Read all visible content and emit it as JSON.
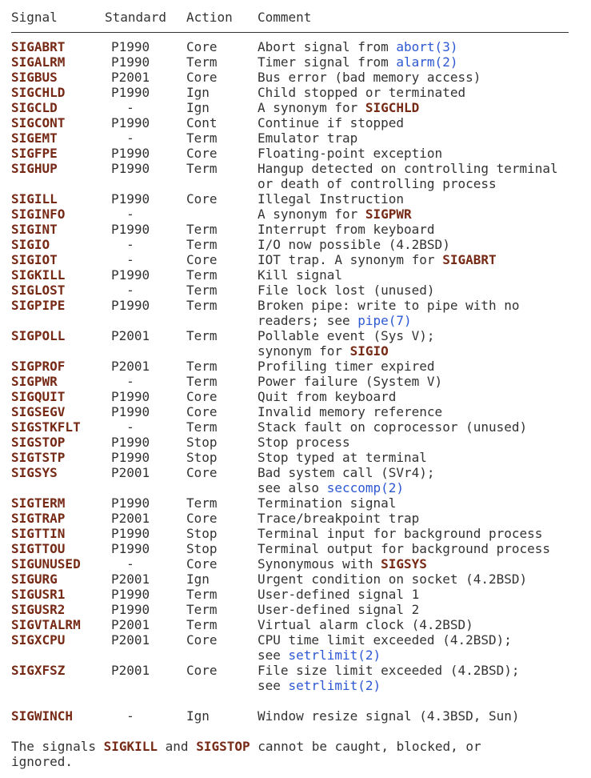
{
  "colors": {
    "text": "#333333",
    "signal_name": "#762a16",
    "link": "#2d58d3",
    "rule": "#333333",
    "background": "#ffffff"
  },
  "table": {
    "headers": {
      "signal": "Signal",
      "standard": "Standard",
      "action": "Action",
      "comment": "Comment"
    },
    "rows": [
      {
        "signal": "SIGABRT",
        "standard": "P1990",
        "action": "Core",
        "comment": [
          [
            "Abort signal from ",
            {
              "t": "abort(3)",
              "k": "link"
            }
          ]
        ]
      },
      {
        "signal": "SIGALRM",
        "standard": "P1990",
        "action": "Term",
        "comment": [
          [
            "Timer signal from ",
            {
              "t": "alarm(2)",
              "k": "link"
            }
          ]
        ]
      },
      {
        "signal": "SIGBUS",
        "standard": "P2001",
        "action": "Core",
        "comment": [
          [
            "Bus error (bad memory access)"
          ]
        ]
      },
      {
        "signal": "SIGCHLD",
        "standard": "P1990",
        "action": "Ign",
        "comment": [
          [
            "Child stopped or terminated"
          ]
        ]
      },
      {
        "signal": "SIGCLD",
        "standard": "-",
        "action": "Ign",
        "comment": [
          [
            "A synonym for ",
            {
              "t": "SIGCHLD",
              "k": "sig"
            }
          ]
        ]
      },
      {
        "signal": "SIGCONT",
        "standard": "P1990",
        "action": "Cont",
        "comment": [
          [
            "Continue if stopped"
          ]
        ]
      },
      {
        "signal": "SIGEMT",
        "standard": "-",
        "action": "Term",
        "comment": [
          [
            "Emulator trap"
          ]
        ]
      },
      {
        "signal": "SIGFPE",
        "standard": "P1990",
        "action": "Core",
        "comment": [
          [
            "Floating-point exception"
          ]
        ]
      },
      {
        "signal": "SIGHUP",
        "standard": "P1990",
        "action": "Term",
        "comment": [
          [
            "Hangup detected on controlling terminal"
          ],
          [
            "or death of controlling process"
          ]
        ]
      },
      {
        "signal": "SIGILL",
        "standard": "P1990",
        "action": "Core",
        "comment": [
          [
            "Illegal Instruction"
          ]
        ]
      },
      {
        "signal": "SIGINFO",
        "standard": "-",
        "action": "",
        "comment": [
          [
            "A synonym for ",
            {
              "t": "SIGPWR",
              "k": "sig"
            }
          ]
        ]
      },
      {
        "signal": "SIGINT",
        "standard": "P1990",
        "action": "Term",
        "comment": [
          [
            "Interrupt from keyboard"
          ]
        ]
      },
      {
        "signal": "SIGIO",
        "standard": "-",
        "action": "Term",
        "comment": [
          [
            "I/O now possible (4.2BSD)"
          ]
        ]
      },
      {
        "signal": "SIGIOT",
        "standard": "-",
        "action": "Core",
        "comment": [
          [
            "IOT trap. A synonym for ",
            {
              "t": "SIGABRT",
              "k": "sig"
            }
          ]
        ]
      },
      {
        "signal": "SIGKILL",
        "standard": "P1990",
        "action": "Term",
        "comment": [
          [
            "Kill signal"
          ]
        ]
      },
      {
        "signal": "SIGLOST",
        "standard": "-",
        "action": "Term",
        "comment": [
          [
            "File lock lost (unused)"
          ]
        ]
      },
      {
        "signal": "SIGPIPE",
        "standard": "P1990",
        "action": "Term",
        "comment": [
          [
            "Broken pipe: write to pipe with no"
          ],
          [
            "readers; see ",
            {
              "t": "pipe(7)",
              "k": "link"
            }
          ]
        ]
      },
      {
        "signal": "SIGPOLL",
        "standard": "P2001",
        "action": "Term",
        "comment": [
          [
            "Pollable event (Sys V);"
          ],
          [
            "synonym for ",
            {
              "t": "SIGIO",
              "k": "sig"
            }
          ]
        ]
      },
      {
        "signal": "SIGPROF",
        "standard": "P2001",
        "action": "Term",
        "comment": [
          [
            "Profiling timer expired"
          ]
        ]
      },
      {
        "signal": "SIGPWR",
        "standard": "-",
        "action": "Term",
        "comment": [
          [
            "Power failure (System V)"
          ]
        ]
      },
      {
        "signal": "SIGQUIT",
        "standard": "P1990",
        "action": "Core",
        "comment": [
          [
            "Quit from keyboard"
          ]
        ]
      },
      {
        "signal": "SIGSEGV",
        "standard": "P1990",
        "action": "Core",
        "comment": [
          [
            "Invalid memory reference"
          ]
        ]
      },
      {
        "signal": "SIGSTKFLT",
        "standard": "-",
        "action": "Term",
        "comment": [
          [
            "Stack fault on coprocessor (unused)"
          ]
        ]
      },
      {
        "signal": "SIGSTOP",
        "standard": "P1990",
        "action": "Stop",
        "comment": [
          [
            "Stop process"
          ]
        ]
      },
      {
        "signal": "SIGTSTP",
        "standard": "P1990",
        "action": "Stop",
        "comment": [
          [
            "Stop typed at terminal"
          ]
        ]
      },
      {
        "signal": "SIGSYS",
        "standard": "P2001",
        "action": "Core",
        "comment": [
          [
            "Bad system call (SVr4);"
          ],
          [
            "see also ",
            {
              "t": "seccomp(2)",
              "k": "link"
            }
          ]
        ]
      },
      {
        "signal": "SIGTERM",
        "standard": "P1990",
        "action": "Term",
        "comment": [
          [
            "Termination signal"
          ]
        ]
      },
      {
        "signal": "SIGTRAP",
        "standard": "P2001",
        "action": "Core",
        "comment": [
          [
            "Trace/breakpoint trap"
          ]
        ]
      },
      {
        "signal": "SIGTTIN",
        "standard": "P1990",
        "action": "Stop",
        "comment": [
          [
            "Terminal input for background process"
          ]
        ]
      },
      {
        "signal": "SIGTTOU",
        "standard": "P1990",
        "action": "Stop",
        "comment": [
          [
            "Terminal output for background process"
          ]
        ]
      },
      {
        "signal": "SIGUNUSED",
        "standard": "-",
        "action": "Core",
        "comment": [
          [
            "Synonymous with ",
            {
              "t": "SIGSYS",
              "k": "sig"
            }
          ]
        ]
      },
      {
        "signal": "SIGURG",
        "standard": "P2001",
        "action": "Ign",
        "comment": [
          [
            "Urgent condition on socket (4.2BSD)"
          ]
        ]
      },
      {
        "signal": "SIGUSR1",
        "standard": "P1990",
        "action": "Term",
        "comment": [
          [
            "User-defined signal 1"
          ]
        ]
      },
      {
        "signal": "SIGUSR2",
        "standard": "P1990",
        "action": "Term",
        "comment": [
          [
            "User-defined signal 2"
          ]
        ]
      },
      {
        "signal": "SIGVTALRM",
        "standard": "P2001",
        "action": "Term",
        "comment": [
          [
            "Virtual alarm clock (4.2BSD)"
          ]
        ]
      },
      {
        "signal": "SIGXCPU",
        "standard": "P2001",
        "action": "Core",
        "comment": [
          [
            "CPU time limit exceeded (4.2BSD);"
          ],
          [
            "see ",
            {
              "t": "setrlimit(2)",
              "k": "link"
            }
          ]
        ]
      },
      {
        "signal": "SIGXFSZ",
        "standard": "P2001",
        "action": "Core",
        "comment": [
          [
            "File size limit exceeded (4.2BSD);"
          ],
          [
            "see ",
            {
              "t": "setrlimit(2)",
              "k": "link"
            }
          ]
        ]
      },
      {
        "signal": "SIGWINCH",
        "standard": "-",
        "action": "Ign",
        "comment": [
          [
            "Window resize signal (4.3BSD, Sun)"
          ]
        ],
        "gap_before": true
      }
    ]
  },
  "footer": {
    "lines": [
      [
        "The signals ",
        {
          "t": "SIGKILL",
          "k": "sig"
        },
        " and ",
        {
          "t": "SIGSTOP",
          "k": "sig"
        },
        " cannot be caught, blocked, or"
      ],
      [
        "ignored."
      ]
    ]
  }
}
